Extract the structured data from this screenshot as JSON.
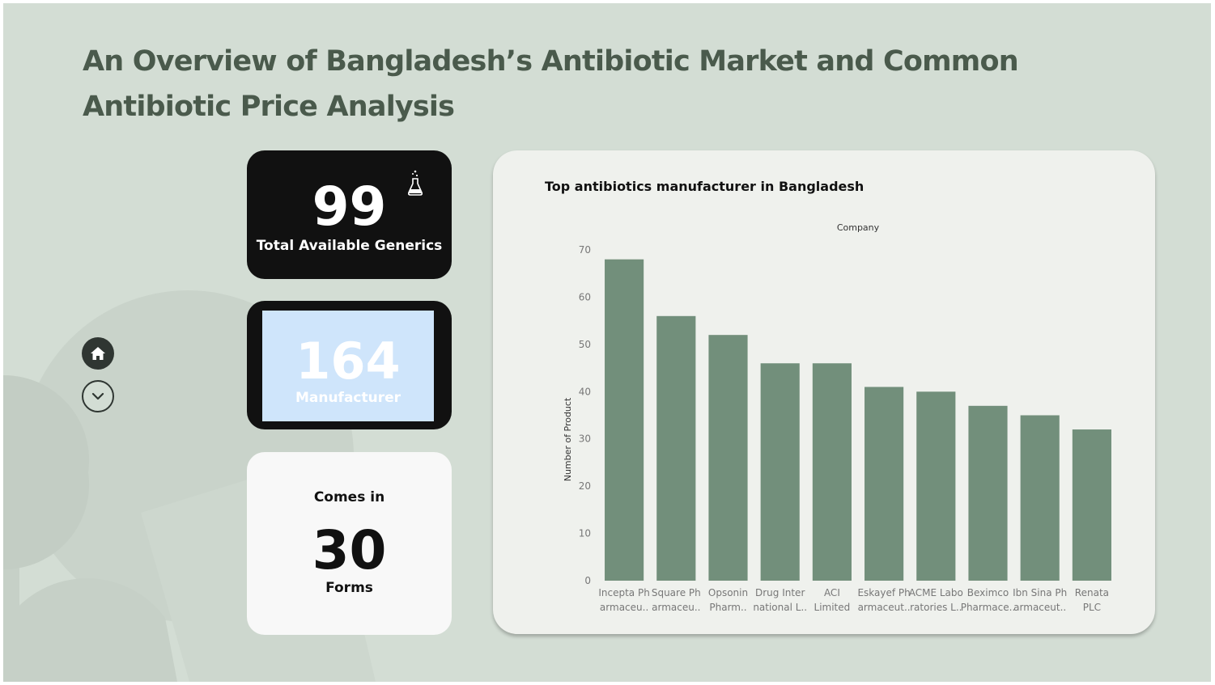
{
  "header": {
    "title": "An Overview of Bangladesh’s Antibiotic Market and Common Antibiotic Price Analysis"
  },
  "nav": {
    "home_icon": "home-icon",
    "down_icon": "chevron-down-icon"
  },
  "kpis": {
    "generics": {
      "value": "99",
      "label": "Total Available Generics",
      "icon": "flask-icon"
    },
    "manufacturer": {
      "value": "164",
      "label": "Manufacturer"
    },
    "forms": {
      "prefix": "Comes in",
      "value": "30",
      "label": "Forms"
    }
  },
  "colors": {
    "background": "#d3ddd4",
    "bar": "#728f7b",
    "card_dark": "#111111",
    "card_light_blue": "#cfe5fb"
  },
  "chart_data": {
    "type": "bar",
    "title": "Top antibiotics manufacturer in Bangladesh",
    "column_header": "Company",
    "ylabel": "Number of Product",
    "ylim": [
      0,
      70
    ],
    "yticks": [
      0,
      10,
      20,
      30,
      40,
      50,
      60,
      70
    ],
    "categories": [
      [
        "Incepta Ph",
        "armaceu.."
      ],
      [
        "Square Ph",
        "armaceu.."
      ],
      [
        "Opsonin",
        "Pharm.."
      ],
      [
        "Drug Inter",
        "national L.."
      ],
      [
        "ACI",
        "Limited"
      ],
      [
        "Eskayef Ph",
        "armaceut.."
      ],
      [
        "ACME Labo",
        "ratories L.."
      ],
      [
        "Beximco",
        "Pharmace.."
      ],
      [
        "Ibn Sina Ph",
        "armaceut.."
      ],
      [
        "Renata",
        "PLC"
      ]
    ],
    "values": [
      68,
      56,
      52,
      46,
      46,
      41,
      40,
      37,
      35,
      32
    ],
    "grid": false
  }
}
